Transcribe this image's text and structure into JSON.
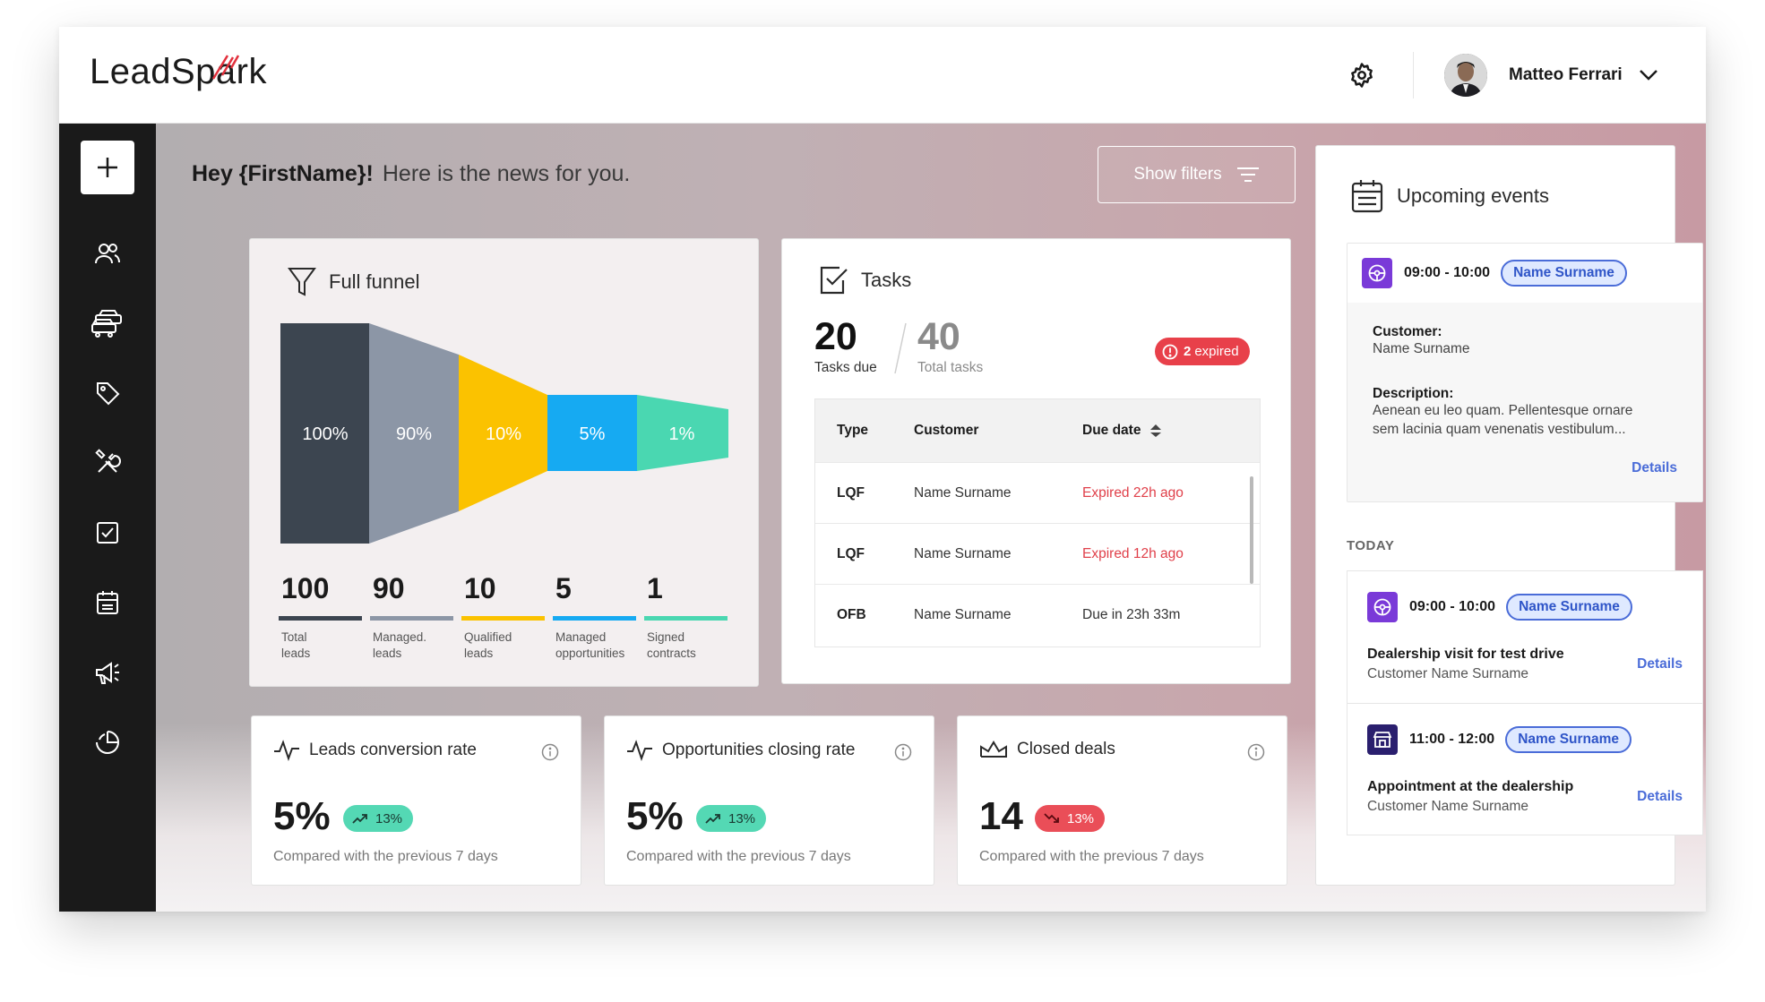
{
  "header": {
    "logo_text": "LeadSpark",
    "user_name": "Matteo Ferrari"
  },
  "greeting": {
    "hello": "Hey {FirstName}!",
    "message": "Here is the news for you."
  },
  "filters": {
    "label": "Show filters"
  },
  "sidebar": {
    "items": [
      "add-icon",
      "contacts-icon",
      "cars-icon",
      "tag-icon",
      "tools-icon",
      "task-icon",
      "calendar-icon",
      "megaphone-icon",
      "pie-chart-icon"
    ]
  },
  "funnel": {
    "title": "Full funnel",
    "stages": [
      {
        "percent": "100%",
        "count": "100",
        "label_line1": "Total",
        "label_line2": "leads",
        "color": "#3c4550"
      },
      {
        "percent": "90%",
        "count": "90",
        "label_line1": "Managed.",
        "label_line2": "leads",
        "color": "#8c96a6"
      },
      {
        "percent": "10%",
        "count": "10",
        "label_line1": "Qualified",
        "label_line2": "leads",
        "color": "#fbc200"
      },
      {
        "percent": "5%",
        "count": "5",
        "label_line1": "Managed",
        "label_line2": "opportunities",
        "color": "#16aaf2"
      },
      {
        "percent": "1%",
        "count": "1",
        "label_line1": "Signed",
        "label_line2": "contracts",
        "color": "#4ad7b1"
      }
    ]
  },
  "tasks": {
    "title": "Tasks",
    "due_count": "20",
    "due_label": "Tasks due",
    "total_count": "40",
    "total_label": "Total tasks",
    "expired_count": "2",
    "expired_label": "expired",
    "columns": [
      "Type",
      "Customer",
      "Due date"
    ],
    "rows": [
      {
        "type": "LQF",
        "customer": "Name Surname",
        "due": "Expired 22h ago",
        "expired": true
      },
      {
        "type": "LQF",
        "customer": "Name Surname",
        "due": "Expired 12h ago",
        "expired": true
      },
      {
        "type": "OFB",
        "customer": "Name Surname",
        "due": "Due in 23h 33m",
        "expired": false
      }
    ]
  },
  "kpis": [
    {
      "title": "Leads conversion rate",
      "value": "5%",
      "change": "13%",
      "direction": "up",
      "sub": "Compared with the previous 7 days"
    },
    {
      "title": "Opportunities closing rate",
      "value": "5%",
      "change": "13%",
      "direction": "up",
      "sub": "Compared with the previous 7 days"
    },
    {
      "title": "Closed deals",
      "value": "14",
      "change": "13%",
      "direction": "down",
      "sub": "Compared with the previous 7 days"
    }
  ],
  "events": {
    "title": "Upcoming events",
    "featured": {
      "time": "09:00 - 10:00",
      "chip": "Name Surname",
      "customer_label": "Customer:",
      "customer": "Name Surname",
      "description_label": "Description:",
      "description": "Aenean eu leo quam. Pellentesque ornare sem lacinia quam venenatis vestibulum...",
      "details": "Details"
    },
    "today_label": "TODAY",
    "today": [
      {
        "time": "09:00 - 10:00",
        "chip": "Name Surname",
        "name": "Dealership visit for test drive",
        "sub": "Customer Name Surname",
        "details": "Details",
        "icon": "steering-wheel-icon"
      },
      {
        "time": "11:00 - 12:00",
        "chip": "Name Surname",
        "name": "Appointment at the dealership",
        "sub": "Customer Name Surname",
        "details": "Details",
        "icon": "store-icon"
      }
    ]
  },
  "colors": {
    "accent_red": "#e8404a",
    "link_blue": "#4a6cd8",
    "event_purple": "#7a3ad8",
    "sidebar_bg": "#1a1a1a"
  }
}
